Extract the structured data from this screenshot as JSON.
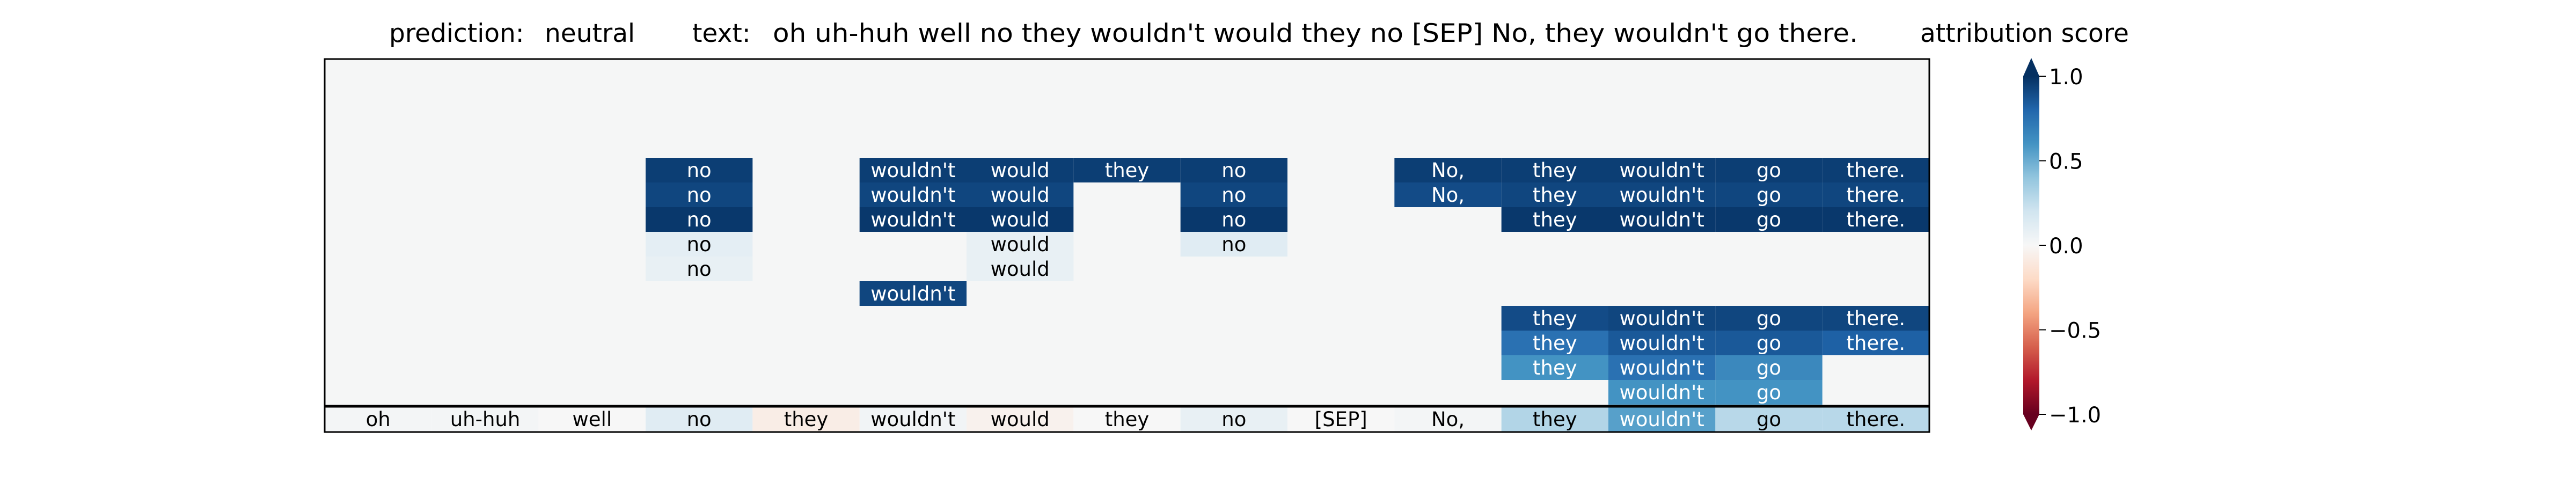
{
  "chart_data": {
    "type": "heatmap",
    "title_prediction_label": "prediction:",
    "title_prediction_value": "neutral",
    "title_text_label": "text:",
    "title_text_value": "oh uh-huh well no they wouldn't would they no [SEP] No, they wouldn't go there.",
    "tokens": [
      "oh",
      "uh-huh",
      "well",
      "no",
      "they",
      "wouldn't",
      "would",
      "they",
      "no",
      "[SEP]",
      "No,",
      "they",
      "wouldn't",
      "go",
      "there."
    ],
    "bottom_scores": [
      0.02,
      0.02,
      0.0,
      0.12,
      -0.07,
      0.03,
      -0.04,
      0.0,
      0.08,
      0.0,
      0.02,
      0.3,
      0.55,
      0.28,
      0.28
    ],
    "layers": [
      [
        0,
        0,
        0,
        0,
        0,
        0,
        0,
        0,
        0,
        0,
        0,
        0,
        0,
        0,
        0
      ],
      [
        0,
        0,
        0,
        0,
        0,
        0,
        0,
        0,
        0,
        0,
        0,
        0,
        0,
        0,
        0
      ],
      [
        0,
        0,
        0,
        0,
        0,
        0,
        0,
        0,
        0,
        0,
        0,
        0,
        0,
        0,
        0
      ],
      [
        0,
        0,
        0,
        0,
        0,
        0,
        0,
        0,
        0,
        0,
        0,
        0,
        0,
        0,
        0
      ],
      [
        0,
        0,
        0,
        0.95,
        0,
        0.95,
        0.95,
        0.95,
        0.95,
        0,
        0.95,
        0.95,
        0.95,
        0.95,
        0.95
      ],
      [
        0,
        0,
        0,
        0.92,
        0,
        0.92,
        0.92,
        0,
        0.92,
        0,
        0.9,
        0.92,
        0.92,
        0.92,
        0.92
      ],
      [
        0,
        0,
        0,
        0.97,
        0,
        0.97,
        0.97,
        0,
        0.97,
        0,
        0,
        0.97,
        0.97,
        0.97,
        0.97
      ],
      [
        0,
        0,
        0,
        0.1,
        0,
        0,
        0.08,
        0,
        0.12,
        0,
        0,
        0,
        0,
        0,
        0
      ],
      [
        0,
        0,
        0,
        0.08,
        0,
        0,
        0.08,
        0,
        0,
        0,
        0,
        0,
        0,
        0,
        0
      ],
      [
        0,
        0,
        0,
        0,
        0,
        0.92,
        0,
        0,
        0,
        0,
        0,
        0,
        0,
        0,
        0
      ],
      [
        0,
        0,
        0,
        0,
        0,
        0,
        0,
        0,
        0,
        0,
        0,
        0.9,
        0.92,
        0.92,
        0.92
      ],
      [
        0,
        0,
        0,
        0,
        0,
        0,
        0,
        0,
        0,
        0,
        0,
        0.75,
        0.85,
        0.85,
        0.82
      ],
      [
        0,
        0,
        0,
        0,
        0,
        0,
        0,
        0,
        0,
        0,
        0,
        0.6,
        0.75,
        0.65,
        0
      ],
      [
        0,
        0,
        0,
        0,
        0,
        0,
        0,
        0,
        0,
        0,
        0,
        0,
        0.6,
        0.6,
        0
      ]
    ],
    "vmin": -1.0,
    "vmax": 1.0,
    "colormap": "RdBu",
    "colorbar_label": "attribution score",
    "colorbar_ticks": [
      "1.0",
      "0.5",
      "0.0",
      "−0.5",
      "−1.0"
    ],
    "colorbar_tick_values": [
      1.0,
      0.5,
      0.0,
      -0.5,
      -1.0
    ]
  }
}
